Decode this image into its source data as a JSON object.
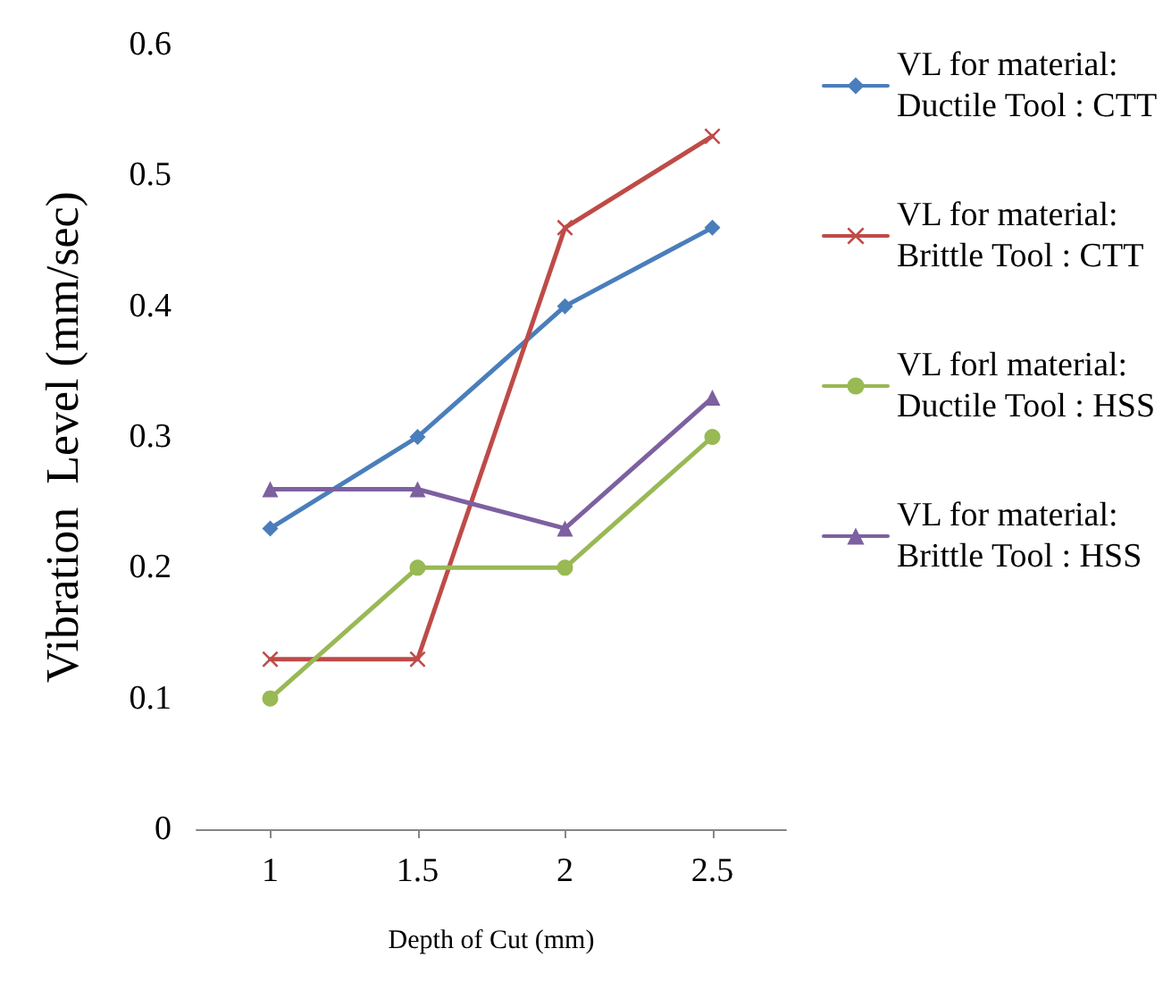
{
  "chart_data": {
    "type": "line",
    "xlabel": "Depth of Cut (mm)",
    "ylabel": "Vibration  Level (mm/sec)",
    "categories": [
      "1",
      "1.5",
      "2",
      "2.5"
    ],
    "ylim": [
      0,
      0.6
    ],
    "yticks": [
      0,
      0.1,
      0.2,
      0.3,
      0.4,
      0.5,
      0.6
    ],
    "grid": false,
    "legend": "right",
    "series": [
      {
        "name": "VL for material: Ductile Tool : CTT",
        "color": "#4a7ebb",
        "marker": "diamond",
        "values": [
          0.23,
          0.3,
          0.4,
          0.46
        ]
      },
      {
        "name": "VL for material: Brittle Tool : CTT",
        "color": "#be4b48",
        "marker": "cross",
        "values": [
          0.13,
          0.13,
          0.46,
          0.53
        ]
      },
      {
        "name": "VL forl material: Ductile Tool : HSS",
        "color": "#98b954",
        "marker": "circle",
        "values": [
          0.1,
          0.2,
          0.2,
          0.3
        ]
      },
      {
        "name": "VL for material: Brittle Tool : HSS",
        "color": "#7d60a0",
        "marker": "triangle",
        "values": [
          0.26,
          0.26,
          0.23,
          0.33
        ]
      }
    ]
  }
}
